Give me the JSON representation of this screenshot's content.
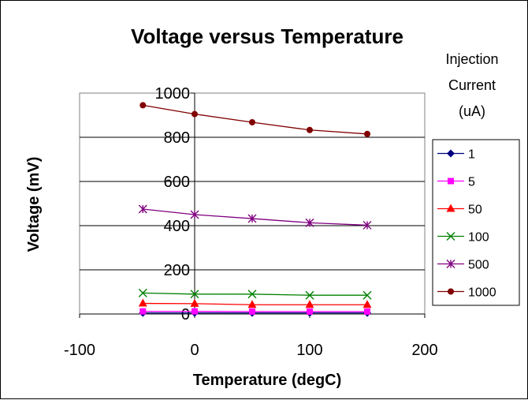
{
  "chart_data": {
    "type": "line",
    "title": "Voltage versus Temperature",
    "xlabel": "Temperature (degC)",
    "ylabel": "Voltage (mV)",
    "xlim": [
      -100,
      200
    ],
    "ylim": [
      0,
      1000
    ],
    "xticks": [
      -100,
      0,
      100,
      200
    ],
    "yticks": [
      0,
      200,
      400,
      600,
      800,
      1000
    ],
    "y_gridlines": true,
    "x_gridlines": false,
    "legend_title": [
      "Injection",
      "Current",
      "(uA)"
    ],
    "legend_position": "right",
    "x": [
      -45,
      0,
      50,
      100,
      150
    ],
    "series": [
      {
        "name": "1",
        "values": [
          5,
          5,
          5,
          5,
          5
        ],
        "color": "#000080",
        "marker": "diamond"
      },
      {
        "name": "5",
        "values": [
          12,
          12,
          11,
          11,
          11
        ],
        "color": "#FF00FF",
        "marker": "square"
      },
      {
        "name": "50",
        "values": [
          48,
          47,
          42,
          42,
          42
        ],
        "color": "#FF0000",
        "marker": "triangle"
      },
      {
        "name": "100",
        "values": [
          95,
          90,
          90,
          85,
          85
        ],
        "color": "#008000",
        "marker": "x"
      },
      {
        "name": "500",
        "values": [
          475,
          450,
          432,
          413,
          402
        ],
        "color": "#800080",
        "marker": "star"
      },
      {
        "name": "1000",
        "values": [
          945,
          905,
          868,
          833,
          815
        ],
        "color": "#800000",
        "marker": "circle"
      }
    ]
  }
}
